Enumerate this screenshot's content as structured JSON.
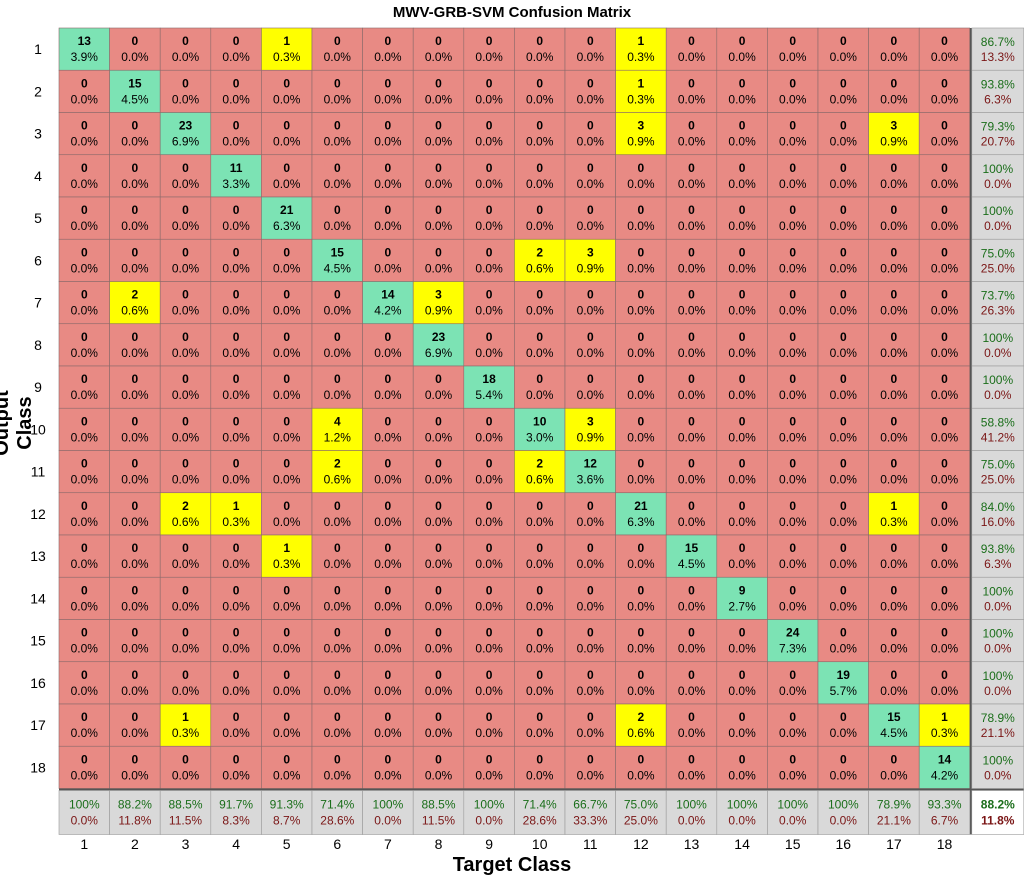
{
  "chart_data": {
    "type": "heatmap",
    "title": "MWV-GRB-SVM Confusion Matrix",
    "xlabel": "Target Class",
    "ylabel": "Output Class",
    "x_ticks": [
      "1",
      "2",
      "3",
      "4",
      "5",
      "6",
      "7",
      "8",
      "9",
      "10",
      "11",
      "12",
      "13",
      "14",
      "15",
      "16",
      "17",
      "18"
    ],
    "y_ticks": [
      "1",
      "2",
      "3",
      "4",
      "5",
      "6",
      "7",
      "8",
      "9",
      "10",
      "11",
      "12",
      "13",
      "14",
      "15",
      "16",
      "17",
      "18"
    ],
    "colors": {
      "diagonal": "#7ce3b4",
      "offdiag_nonzero": "#ffff00",
      "zero": "#e88a84",
      "summary": "#d9d9d9",
      "good_text": "#1a6e1a",
      "bad_text": "#7a1515"
    },
    "counts": [
      [
        13,
        0,
        0,
        0,
        1,
        0,
        0,
        0,
        0,
        0,
        0,
        1,
        0,
        0,
        0,
        0,
        0,
        0
      ],
      [
        0,
        15,
        0,
        0,
        0,
        0,
        0,
        0,
        0,
        0,
        0,
        1,
        0,
        0,
        0,
        0,
        0,
        0
      ],
      [
        0,
        0,
        23,
        0,
        0,
        0,
        0,
        0,
        0,
        0,
        0,
        3,
        0,
        0,
        0,
        0,
        3,
        0
      ],
      [
        0,
        0,
        0,
        11,
        0,
        0,
        0,
        0,
        0,
        0,
        0,
        0,
        0,
        0,
        0,
        0,
        0,
        0
      ],
      [
        0,
        0,
        0,
        0,
        21,
        0,
        0,
        0,
        0,
        0,
        0,
        0,
        0,
        0,
        0,
        0,
        0,
        0
      ],
      [
        0,
        0,
        0,
        0,
        0,
        15,
        0,
        0,
        0,
        2,
        3,
        0,
        0,
        0,
        0,
        0,
        0,
        0
      ],
      [
        0,
        2,
        0,
        0,
        0,
        0,
        14,
        3,
        0,
        0,
        0,
        0,
        0,
        0,
        0,
        0,
        0,
        0
      ],
      [
        0,
        0,
        0,
        0,
        0,
        0,
        0,
        23,
        0,
        0,
        0,
        0,
        0,
        0,
        0,
        0,
        0,
        0
      ],
      [
        0,
        0,
        0,
        0,
        0,
        0,
        0,
        0,
        18,
        0,
        0,
        0,
        0,
        0,
        0,
        0,
        0,
        0
      ],
      [
        0,
        0,
        0,
        0,
        0,
        4,
        0,
        0,
        0,
        10,
        3,
        0,
        0,
        0,
        0,
        0,
        0,
        0
      ],
      [
        0,
        0,
        0,
        0,
        0,
        2,
        0,
        0,
        0,
        2,
        12,
        0,
        0,
        0,
        0,
        0,
        0,
        0
      ],
      [
        0,
        0,
        2,
        1,
        0,
        0,
        0,
        0,
        0,
        0,
        0,
        21,
        0,
        0,
        0,
        0,
        1,
        0
      ],
      [
        0,
        0,
        0,
        0,
        1,
        0,
        0,
        0,
        0,
        0,
        0,
        0,
        15,
        0,
        0,
        0,
        0,
        0
      ],
      [
        0,
        0,
        0,
        0,
        0,
        0,
        0,
        0,
        0,
        0,
        0,
        0,
        0,
        9,
        0,
        0,
        0,
        0
      ],
      [
        0,
        0,
        0,
        0,
        0,
        0,
        0,
        0,
        0,
        0,
        0,
        0,
        0,
        0,
        24,
        0,
        0,
        0
      ],
      [
        0,
        0,
        0,
        0,
        0,
        0,
        0,
        0,
        0,
        0,
        0,
        0,
        0,
        0,
        0,
        19,
        0,
        0
      ],
      [
        0,
        0,
        1,
        0,
        0,
        0,
        0,
        0,
        0,
        0,
        0,
        2,
        0,
        0,
        0,
        0,
        15,
        1
      ],
      [
        0,
        0,
        0,
        0,
        0,
        0,
        0,
        0,
        0,
        0,
        0,
        0,
        0,
        0,
        0,
        0,
        0,
        14
      ]
    ],
    "percents": [
      [
        "3.9%",
        "0.0%",
        "0.0%",
        "0.0%",
        "0.3%",
        "0.0%",
        "0.0%",
        "0.0%",
        "0.0%",
        "0.0%",
        "0.0%",
        "0.3%",
        "0.0%",
        "0.0%",
        "0.0%",
        "0.0%",
        "0.0%",
        "0.0%"
      ],
      [
        "0.0%",
        "4.5%",
        "0.0%",
        "0.0%",
        "0.0%",
        "0.0%",
        "0.0%",
        "0.0%",
        "0.0%",
        "0.0%",
        "0.0%",
        "0.3%",
        "0.0%",
        "0.0%",
        "0.0%",
        "0.0%",
        "0.0%",
        "0.0%"
      ],
      [
        "0.0%",
        "0.0%",
        "6.9%",
        "0.0%",
        "0.0%",
        "0.0%",
        "0.0%",
        "0.0%",
        "0.0%",
        "0.0%",
        "0.0%",
        "0.9%",
        "0.0%",
        "0.0%",
        "0.0%",
        "0.0%",
        "0.9%",
        "0.0%"
      ],
      [
        "0.0%",
        "0.0%",
        "0.0%",
        "3.3%",
        "0.0%",
        "0.0%",
        "0.0%",
        "0.0%",
        "0.0%",
        "0.0%",
        "0.0%",
        "0.0%",
        "0.0%",
        "0.0%",
        "0.0%",
        "0.0%",
        "0.0%",
        "0.0%"
      ],
      [
        "0.0%",
        "0.0%",
        "0.0%",
        "0.0%",
        "6.3%",
        "0.0%",
        "0.0%",
        "0.0%",
        "0.0%",
        "0.0%",
        "0.0%",
        "0.0%",
        "0.0%",
        "0.0%",
        "0.0%",
        "0.0%",
        "0.0%",
        "0.0%"
      ],
      [
        "0.0%",
        "0.0%",
        "0.0%",
        "0.0%",
        "0.0%",
        "4.5%",
        "0.0%",
        "0.0%",
        "0.0%",
        "0.6%",
        "0.9%",
        "0.0%",
        "0.0%",
        "0.0%",
        "0.0%",
        "0.0%",
        "0.0%",
        "0.0%"
      ],
      [
        "0.0%",
        "0.6%",
        "0.0%",
        "0.0%",
        "0.0%",
        "0.0%",
        "4.2%",
        "0.9%",
        "0.0%",
        "0.0%",
        "0.0%",
        "0.0%",
        "0.0%",
        "0.0%",
        "0.0%",
        "0.0%",
        "0.0%",
        "0.0%"
      ],
      [
        "0.0%",
        "0.0%",
        "0.0%",
        "0.0%",
        "0.0%",
        "0.0%",
        "0.0%",
        "6.9%",
        "0.0%",
        "0.0%",
        "0.0%",
        "0.0%",
        "0.0%",
        "0.0%",
        "0.0%",
        "0.0%",
        "0.0%",
        "0.0%"
      ],
      [
        "0.0%",
        "0.0%",
        "0.0%",
        "0.0%",
        "0.0%",
        "0.0%",
        "0.0%",
        "0.0%",
        "5.4%",
        "0.0%",
        "0.0%",
        "0.0%",
        "0.0%",
        "0.0%",
        "0.0%",
        "0.0%",
        "0.0%",
        "0.0%"
      ],
      [
        "0.0%",
        "0.0%",
        "0.0%",
        "0.0%",
        "0.0%",
        "1.2%",
        "0.0%",
        "0.0%",
        "0.0%",
        "3.0%",
        "0.9%",
        "0.0%",
        "0.0%",
        "0.0%",
        "0.0%",
        "0.0%",
        "0.0%",
        "0.0%"
      ],
      [
        "0.0%",
        "0.0%",
        "0.0%",
        "0.0%",
        "0.0%",
        "0.6%",
        "0.0%",
        "0.0%",
        "0.0%",
        "0.6%",
        "3.6%",
        "0.0%",
        "0.0%",
        "0.0%",
        "0.0%",
        "0.0%",
        "0.0%",
        "0.0%"
      ],
      [
        "0.0%",
        "0.0%",
        "0.6%",
        "0.3%",
        "0.0%",
        "0.0%",
        "0.0%",
        "0.0%",
        "0.0%",
        "0.0%",
        "0.0%",
        "6.3%",
        "0.0%",
        "0.0%",
        "0.0%",
        "0.0%",
        "0.3%",
        "0.0%"
      ],
      [
        "0.0%",
        "0.0%",
        "0.0%",
        "0.0%",
        "0.3%",
        "0.0%",
        "0.0%",
        "0.0%",
        "0.0%",
        "0.0%",
        "0.0%",
        "0.0%",
        "4.5%",
        "0.0%",
        "0.0%",
        "0.0%",
        "0.0%",
        "0.0%"
      ],
      [
        "0.0%",
        "0.0%",
        "0.0%",
        "0.0%",
        "0.0%",
        "0.0%",
        "0.0%",
        "0.0%",
        "0.0%",
        "0.0%",
        "0.0%",
        "0.0%",
        "0.0%",
        "2.7%",
        "0.0%",
        "0.0%",
        "0.0%",
        "0.0%"
      ],
      [
        "0.0%",
        "0.0%",
        "0.0%",
        "0.0%",
        "0.0%",
        "0.0%",
        "0.0%",
        "0.0%",
        "0.0%",
        "0.0%",
        "0.0%",
        "0.0%",
        "0.0%",
        "0.0%",
        "7.3%",
        "0.0%",
        "0.0%",
        "0.0%"
      ],
      [
        "0.0%",
        "0.0%",
        "0.0%",
        "0.0%",
        "0.0%",
        "0.0%",
        "0.0%",
        "0.0%",
        "0.0%",
        "0.0%",
        "0.0%",
        "0.0%",
        "0.0%",
        "0.0%",
        "0.0%",
        "5.7%",
        "0.0%",
        "0.0%"
      ],
      [
        "0.0%",
        "0.0%",
        "0.3%",
        "0.0%",
        "0.0%",
        "0.0%",
        "0.0%",
        "0.0%",
        "0.0%",
        "0.0%",
        "0.0%",
        "0.6%",
        "0.0%",
        "0.0%",
        "0.0%",
        "0.0%",
        "4.5%",
        "0.3%"
      ],
      [
        "0.0%",
        "0.0%",
        "0.0%",
        "0.0%",
        "0.0%",
        "0.0%",
        "0.0%",
        "0.0%",
        "0.0%",
        "0.0%",
        "0.0%",
        "0.0%",
        "0.0%",
        "0.0%",
        "0.0%",
        "0.0%",
        "0.0%",
        "4.2%"
      ]
    ],
    "row_summary": [
      [
        "86.7%",
        "13.3%"
      ],
      [
        "93.8%",
        "6.3%"
      ],
      [
        "79.3%",
        "20.7%"
      ],
      [
        "100%",
        "0.0%"
      ],
      [
        "100%",
        "0.0%"
      ],
      [
        "75.0%",
        "25.0%"
      ],
      [
        "73.7%",
        "26.3%"
      ],
      [
        "100%",
        "0.0%"
      ],
      [
        "100%",
        "0.0%"
      ],
      [
        "58.8%",
        "41.2%"
      ],
      [
        "75.0%",
        "25.0%"
      ],
      [
        "84.0%",
        "16.0%"
      ],
      [
        "93.8%",
        "6.3%"
      ],
      [
        "100%",
        "0.0%"
      ],
      [
        "100%",
        "0.0%"
      ],
      [
        "100%",
        "0.0%"
      ],
      [
        "78.9%",
        "21.1%"
      ],
      [
        "100%",
        "0.0%"
      ]
    ],
    "col_summary": [
      [
        "100%",
        "0.0%"
      ],
      [
        "88.2%",
        "11.8%"
      ],
      [
        "88.5%",
        "11.5%"
      ],
      [
        "91.7%",
        "8.3%"
      ],
      [
        "91.3%",
        "8.7%"
      ],
      [
        "71.4%",
        "28.6%"
      ],
      [
        "100%",
        "0.0%"
      ],
      [
        "88.5%",
        "11.5%"
      ],
      [
        "100%",
        "0.0%"
      ],
      [
        "71.4%",
        "28.6%"
      ],
      [
        "66.7%",
        "33.3%"
      ],
      [
        "75.0%",
        "25.0%"
      ],
      [
        "100%",
        "0.0%"
      ],
      [
        "100%",
        "0.0%"
      ],
      [
        "100%",
        "0.0%"
      ],
      [
        "100%",
        "0.0%"
      ],
      [
        "78.9%",
        "21.1%"
      ],
      [
        "93.3%",
        "6.7%"
      ]
    ],
    "overall": [
      "88.2%",
      "11.8%"
    ]
  }
}
